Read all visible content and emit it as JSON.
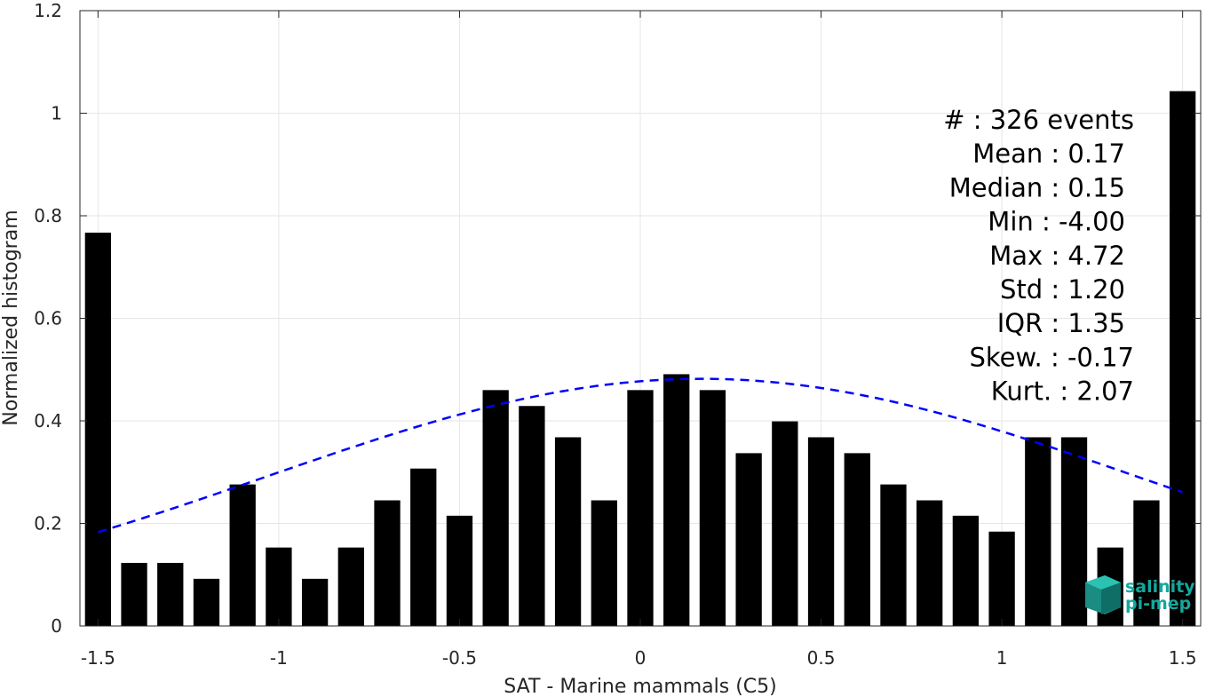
{
  "chart_data": {
    "type": "bar",
    "xlabel": "SAT - Marine mammals (C5)",
    "ylabel": "Normalized histogram",
    "xlim": [
      -1.55,
      1.55
    ],
    "ylim": [
      0,
      1.2
    ],
    "xticks": [
      -1.5,
      -1,
      -0.5,
      0,
      0.5,
      1,
      1.5
    ],
    "xtick_labels": [
      "-1.5",
      "-1",
      "-0.5",
      "0",
      "0.5",
      "1",
      "1.5"
    ],
    "yticks": [
      0,
      0.2,
      0.4,
      0.6,
      0.8,
      1,
      1.2
    ],
    "ytick_labels": [
      "0",
      "0.2",
      "0.4",
      "0.6",
      "0.8",
      "1",
      "1.2"
    ],
    "grid": true,
    "bar_color": "#000000",
    "x": [
      -1.5,
      -1.4,
      -1.3,
      -1.2,
      -1.1,
      -1.0,
      -0.9,
      -0.8,
      -0.7,
      -0.6,
      -0.5,
      -0.4,
      -0.3,
      -0.2,
      -0.1,
      0.0,
      0.1,
      0.2,
      0.3,
      0.4,
      0.5,
      0.6,
      0.7,
      0.8,
      0.9,
      1.0,
      1.1,
      1.2,
      1.3,
      1.4,
      1.5
    ],
    "values": [
      0.767,
      0.123,
      0.123,
      0.092,
      0.276,
      0.153,
      0.092,
      0.153,
      0.245,
      0.307,
      0.215,
      0.46,
      0.429,
      0.368,
      0.245,
      0.46,
      0.491,
      0.46,
      0.337,
      0.399,
      0.368,
      0.337,
      0.276,
      0.245,
      0.215,
      0.184,
      0.368,
      0.368,
      0.153,
      0.245,
      1.043
    ],
    "fit_curve": {
      "style": "dashed",
      "color": "#0000ff",
      "mean": 0.17,
      "std": 1.2,
      "peak": 0.482,
      "x_range": [
        -1.5,
        1.5
      ]
    },
    "stats": [
      {
        "label": "#  : 326 events"
      },
      {
        "label": "Mean : 0.17"
      },
      {
        "label": "Median : 0.15"
      },
      {
        "label": "Min : -4.00"
      },
      {
        "label": "Max : 4.72"
      },
      {
        "label": "Std : 1.20"
      },
      {
        "label": "IQR : 1.35"
      },
      {
        "label": "Skew. : -0.17"
      },
      {
        "label": "Kurt. : 2.07"
      }
    ]
  },
  "logo": {
    "line1": "salinity",
    "line2": "pi-mep",
    "color": "#13a89e",
    "icon": "cube-stack-icon"
  }
}
